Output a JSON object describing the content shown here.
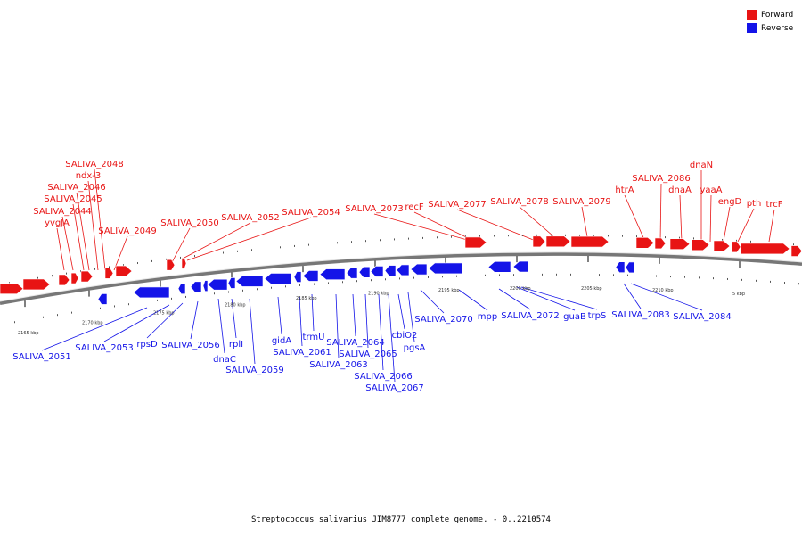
{
  "legend": {
    "forward": {
      "label": "Forward",
      "color": "#e81414"
    },
    "reverse": {
      "label": "Reverse",
      "color": "#1414e8"
    }
  },
  "caption": "Streptococcus salivarius JIM8777 complete genome. - 0..2210574",
  "chart_data": {
    "type": "genome-map",
    "scale_ticks": [
      "2165 kbp",
      "2170 kbp",
      "2175 kbp",
      "2180 kbp",
      "2185 kbp",
      "2190 kbp",
      "2195 kbp",
      "2200 kbp",
      "2205 kbp",
      "2210 kbp",
      "5 kbp"
    ],
    "forward_labels": [
      "SALIVA_2048",
      "ndx-3",
      "SALIVA_2046",
      "SALIVA_2045",
      "SALIVA_2044",
      "yvgJA",
      "SALIVA_2049",
      "SALIVA_2050",
      "SALIVA_2052",
      "SALIVA_2054",
      "SALIVA_2073",
      "recF",
      "SALIVA_2077",
      "SALIVA_2078",
      "SALIVA_2079",
      "htrA",
      "SALIVA_2086",
      "dnaN",
      "dnaA",
      "yaaA",
      "engD",
      "pth",
      "trcF"
    ],
    "reverse_labels": [
      "SALIVA_2051",
      "SALIVA_2053",
      "rpsD",
      "SALIVA_2056",
      "dnaC",
      "rplI",
      "SALIVA_2059",
      "gidA",
      "SALIVA_2061",
      "trmU",
      "SALIVA_2063",
      "SALIVA_2064",
      "SALIVA_2065",
      "SALIVA_2066",
      "SALIVA_2067",
      "cbiO2",
      "pgsA",
      "SALIVA_2070",
      "mpp",
      "SALIVA_2072",
      "guaB",
      "trpS",
      "SALIVA_2083",
      "SALIVA_2084"
    ]
  }
}
